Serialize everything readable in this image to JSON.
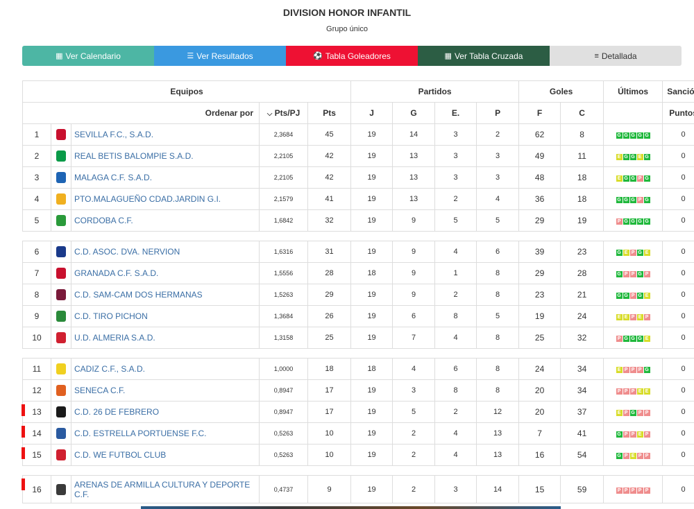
{
  "header": {
    "title": "DIVISION HONOR INFANTIL",
    "subtitle": "Grupo único"
  },
  "buttons": [
    {
      "label": "Ver Calendario",
      "icon": "calendar-icon",
      "glyph": "▦",
      "color": "#4db6a4"
    },
    {
      "label": "Ver Resultados",
      "icon": "list-icon",
      "glyph": "☰",
      "color": "#3a99e0"
    },
    {
      "label": "Tabla Goleadores",
      "icon": "soccer-ball-icon",
      "glyph": "⚽",
      "color": "#ee1133"
    },
    {
      "label": "Ver Tabla Cruzada",
      "icon": "table-grid-icon",
      "glyph": "▦",
      "color": "#2c5d44"
    },
    {
      "label": "Detallada",
      "icon": "detail-list-icon",
      "glyph": "≡",
      "color": "#e0e0e0",
      "text_color": "#333333"
    }
  ],
  "table": {
    "groups": {
      "equipos": "Equipos",
      "partidos": "Partidos",
      "goles": "Goles",
      "ultimos": "Últimos",
      "sancion": "Sanción"
    },
    "sub": {
      "ordenar": "Ordenar por",
      "ptspj": "Pts/PJ",
      "pts": "Pts",
      "j": "J",
      "g": "G",
      "e": "E.",
      "p": "P",
      "f": "F",
      "c": "C",
      "puntos": "Puntos"
    },
    "rows": [
      {
        "pos": "1",
        "team": "SEVILLA F.C., S.A.D.",
        "crest": "#c8102e",
        "ratio": "2,3684",
        "pts": "45",
        "j": "19",
        "g": "14",
        "e": "3",
        "p": "2",
        "f": "62",
        "c": "8",
        "last": [
          "G",
          "G",
          "G",
          "G",
          "G"
        ],
        "sancion": "0",
        "red": false
      },
      {
        "pos": "2",
        "team": "REAL BETIS BALOMPIE S.A.D.",
        "crest": "#0a9a48",
        "ratio": "2,2105",
        "pts": "42",
        "j": "19",
        "g": "13",
        "e": "3",
        "p": "3",
        "f": "49",
        "c": "11",
        "last": [
          "E",
          "G",
          "G",
          "E",
          "G"
        ],
        "sancion": "0",
        "red": false
      },
      {
        "pos": "3",
        "team": "MALAGA C.F. S.A.D.",
        "crest": "#1e64b4",
        "ratio": "2,2105",
        "pts": "42",
        "j": "19",
        "g": "13",
        "e": "3",
        "p": "3",
        "f": "48",
        "c": "18",
        "last": [
          "E",
          "G",
          "G",
          "P",
          "G"
        ],
        "sancion": "0",
        "red": false
      },
      {
        "pos": "4",
        "team": "PTO.MALAGUEÑO CDAD.JARDIN G.I.",
        "crest": "#f0b020",
        "ratio": "2,1579",
        "pts": "41",
        "j": "19",
        "g": "13",
        "e": "2",
        "p": "4",
        "f": "36",
        "c": "18",
        "last": [
          "G",
          "G",
          "G",
          "P",
          "G"
        ],
        "sancion": "0",
        "red": false
      },
      {
        "pos": "5",
        "team": "CORDOBA C.F.",
        "crest": "#2a9a3a",
        "ratio": "1,6842",
        "pts": "32",
        "j": "19",
        "g": "9",
        "e": "5",
        "p": "5",
        "f": "29",
        "c": "19",
        "last": [
          "P",
          "G",
          "G",
          "G",
          "G"
        ],
        "sancion": "0",
        "red": false
      },
      {
        "spacer": true
      },
      {
        "pos": "6",
        "team": "C.D. ASOC. DVA. NERVION",
        "crest": "#1a3a8a",
        "ratio": "1,6316",
        "pts": "31",
        "j": "19",
        "g": "9",
        "e": "4",
        "p": "6",
        "f": "39",
        "c": "23",
        "last": [
          "G",
          "E",
          "P",
          "G",
          "E"
        ],
        "sancion": "0",
        "red": false
      },
      {
        "pos": "7",
        "team": "GRANADA C.F. S.A.D.",
        "crest": "#c8102e",
        "ratio": "1,5556",
        "pts": "28",
        "j": "18",
        "g": "9",
        "e": "1",
        "p": "8",
        "f": "29",
        "c": "28",
        "last": [
          "G",
          "P",
          "P",
          "G",
          "P"
        ],
        "sancion": "0",
        "red": false
      },
      {
        "pos": "8",
        "team": "C.D. SAM-CAM DOS HERMANAS",
        "crest": "#7a1a3a",
        "ratio": "1,5263",
        "pts": "29",
        "j": "19",
        "g": "9",
        "e": "2",
        "p": "8",
        "f": "23",
        "c": "21",
        "last": [
          "G",
          "G",
          "P",
          "G",
          "E"
        ],
        "sancion": "0",
        "red": false
      },
      {
        "pos": "9",
        "team": "C.D. TIRO PICHON",
        "crest": "#2a8a3a",
        "ratio": "1,3684",
        "pts": "26",
        "j": "19",
        "g": "6",
        "e": "8",
        "p": "5",
        "f": "19",
        "c": "24",
        "last": [
          "E",
          "E",
          "P",
          "E",
          "P"
        ],
        "sancion": "0",
        "red": false
      },
      {
        "pos": "10",
        "team": "U.D. ALMERIA S.A.D.",
        "crest": "#d02030",
        "ratio": "1,3158",
        "pts": "25",
        "j": "19",
        "g": "7",
        "e": "4",
        "p": "8",
        "f": "25",
        "c": "32",
        "last": [
          "P",
          "G",
          "G",
          "G",
          "E"
        ],
        "sancion": "0",
        "red": false
      },
      {
        "spacer": true
      },
      {
        "pos": "11",
        "team": "CADIZ C.F., S.A.D.",
        "crest": "#f0d020",
        "ratio": "1,0000",
        "pts": "18",
        "j": "18",
        "g": "4",
        "e": "6",
        "p": "8",
        "f": "24",
        "c": "34",
        "last": [
          "E",
          "P",
          "P",
          "P",
          "G"
        ],
        "sancion": "0",
        "red": false
      },
      {
        "pos": "12",
        "team": "SENECA C.F.",
        "crest": "#e06020",
        "ratio": "0,8947",
        "pts": "17",
        "j": "19",
        "g": "3",
        "e": "8",
        "p": "8",
        "f": "20",
        "c": "34",
        "last": [
          "P",
          "P",
          "P",
          "E",
          "E"
        ],
        "sancion": "0",
        "red": false
      },
      {
        "pos": "13",
        "team": "C.D. 26 DE FEBRERO",
        "crest": "#1a1a1a",
        "ratio": "0,8947",
        "pts": "17",
        "j": "19",
        "g": "5",
        "e": "2",
        "p": "12",
        "f": "20",
        "c": "37",
        "last": [
          "E",
          "P",
          "G",
          "P",
          "P"
        ],
        "sancion": "0",
        "red": true
      },
      {
        "pos": "14",
        "team": "C.D. ESTRELLA PORTUENSE F.C.",
        "crest": "#2a5aa0",
        "ratio": "0,5263",
        "pts": "10",
        "j": "19",
        "g": "2",
        "e": "4",
        "p": "13",
        "f": "7",
        "c": "41",
        "last": [
          "G",
          "P",
          "P",
          "E",
          "P"
        ],
        "sancion": "0",
        "red": true
      },
      {
        "pos": "15",
        "team": "C.D. WE FUTBOL CLUB",
        "crest": "#d02030",
        "ratio": "0,5263",
        "pts": "10",
        "j": "19",
        "g": "2",
        "e": "4",
        "p": "13",
        "f": "16",
        "c": "54",
        "last": [
          "G",
          "P",
          "E",
          "P",
          "P"
        ],
        "sancion": "0",
        "red": true
      },
      {
        "spacer": true
      },
      {
        "pos": "16",
        "team": "ARENAS DE ARMILLA CULTURA Y DEPORTE C.F.",
        "crest": "#3a3a3a",
        "ratio": "0,4737",
        "pts": "9",
        "j": "19",
        "g": "2",
        "e": "3",
        "p": "14",
        "f": "15",
        "c": "59",
        "last": [
          "P",
          "P",
          "P",
          "P",
          "P"
        ],
        "sancion": "0",
        "red": true,
        "tall": true
      }
    ]
  }
}
